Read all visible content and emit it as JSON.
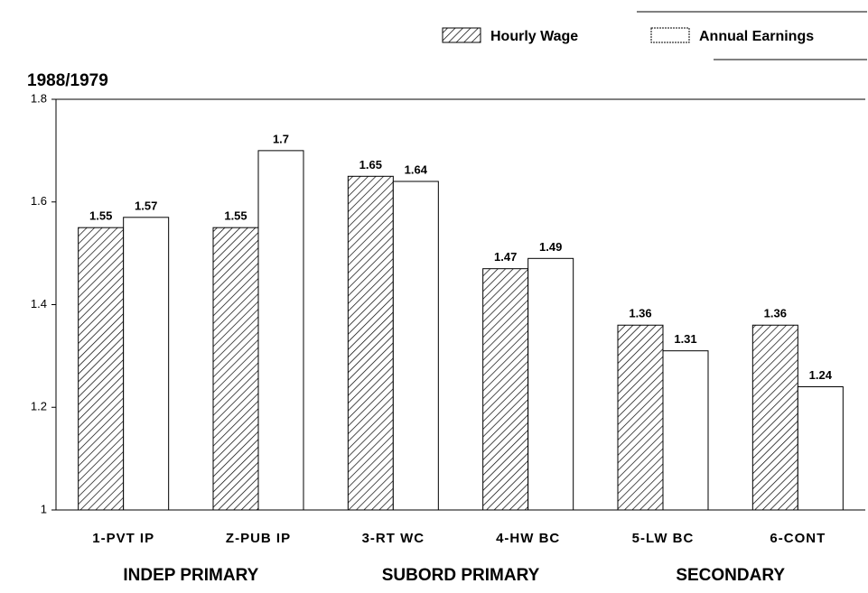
{
  "chart_data": {
    "type": "bar",
    "title": "1988/1979",
    "categories": [
      "1-PVT IP",
      "Z-PUB IP",
      "3-RT WC",
      "4-HW BC",
      "5-LW BC",
      "6-CONT"
    ],
    "groups": [
      "INDEP PRIMARY",
      "SUBORD PRIMARY",
      "SECONDARY"
    ],
    "series": [
      {
        "name": "Hourly Wage",
        "color": "hatch",
        "values": [
          1.55,
          1.55,
          1.65,
          1.47,
          1.36,
          1.36
        ],
        "value_labels": [
          "1.55",
          "1.55",
          "1.65",
          "1.47",
          "1.36",
          "1.36"
        ]
      },
      {
        "name": "Annual Earnings",
        "color": "#ffffff",
        "values": [
          1.57,
          1.7,
          1.64,
          1.49,
          1.31,
          1.24
        ],
        "value_labels": [
          "1.57",
          "1.7",
          "1.64",
          "1.49",
          "1.31",
          "1.24"
        ]
      }
    ],
    "ylim": [
      1,
      1.8
    ],
    "yticks": [
      1,
      1.2,
      1.4,
      1.6,
      1.8
    ],
    "legend": "top-right"
  }
}
